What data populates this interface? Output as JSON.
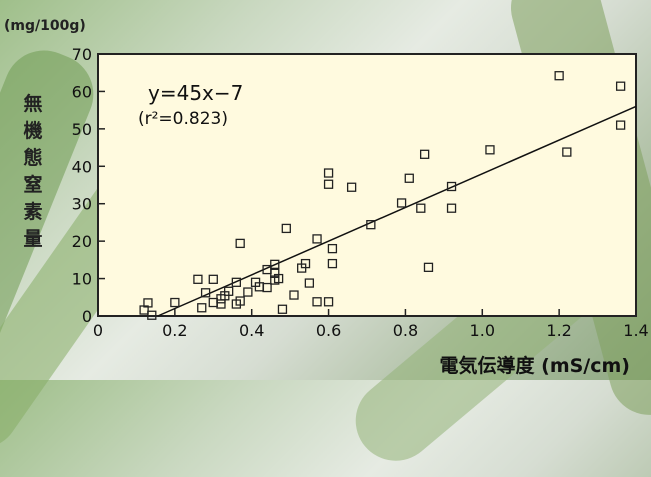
{
  "chart_data": {
    "type": "scatter",
    "unit_label": "(mg/100g)",
    "ylabel_chars": [
      "無",
      "機",
      "態",
      "窒",
      "素",
      "量"
    ],
    "xlabel": "電気伝導度 (mS/cm)",
    "equation": "y=45x−7",
    "r2_label": "(r²=0.823)",
    "xlim": [
      0,
      1.4
    ],
    "ylim": [
      0,
      70
    ],
    "x_ticks": [
      "0",
      "0.2",
      "0.4",
      "0.6",
      "0.8",
      "1.0",
      "1.2",
      "1.4"
    ],
    "y_ticks": [
      "0",
      "10",
      "20",
      "30",
      "40",
      "50",
      "60",
      "70"
    ],
    "trendline": {
      "slope": 45,
      "intercept": -7
    },
    "marker_color": "#222222",
    "plot_background": "#fffadf",
    "points": [
      [
        0.13,
        3.5
      ],
      [
        0.14,
        0.2
      ],
      [
        0.12,
        1.6
      ],
      [
        0.2,
        3.6
      ],
      [
        0.26,
        9.8
      ],
      [
        0.27,
        2.2
      ],
      [
        0.28,
        6.2
      ],
      [
        0.3,
        9.8
      ],
      [
        0.3,
        3.6
      ],
      [
        0.32,
        4.6
      ],
      [
        0.32,
        3.2
      ],
      [
        0.33,
        5.4
      ],
      [
        0.34,
        6.6
      ],
      [
        0.36,
        3.2
      ],
      [
        0.37,
        4.0
      ],
      [
        0.36,
        9.0
      ],
      [
        0.37,
        19.4
      ],
      [
        0.39,
        6.4
      ],
      [
        0.41,
        9.0
      ],
      [
        0.42,
        7.8
      ],
      [
        0.44,
        12.4
      ],
      [
        0.44,
        7.6
      ],
      [
        0.46,
        13.8
      ],
      [
        0.46,
        11.4
      ],
      [
        0.46,
        9.6
      ],
      [
        0.47,
        10.0
      ],
      [
        0.48,
        1.8
      ],
      [
        0.49,
        23.4
      ],
      [
        0.51,
        5.6
      ],
      [
        0.53,
        12.8
      ],
      [
        0.54,
        14.0
      ],
      [
        0.55,
        8.8
      ],
      [
        0.57,
        3.8
      ],
      [
        0.57,
        20.6
      ],
      [
        0.6,
        3.8
      ],
      [
        0.6,
        35.2
      ],
      [
        0.6,
        38.2
      ],
      [
        0.61,
        14.0
      ],
      [
        0.61,
        18.0
      ],
      [
        0.66,
        34.4
      ],
      [
        0.71,
        24.4
      ],
      [
        0.79,
        30.2
      ],
      [
        0.81,
        36.8
      ],
      [
        0.84,
        28.8
      ],
      [
        0.85,
        43.2
      ],
      [
        0.86,
        13.0
      ],
      [
        0.92,
        34.6
      ],
      [
        0.92,
        28.8
      ],
      [
        1.02,
        44.4
      ],
      [
        1.2,
        64.2
      ],
      [
        1.22,
        43.8
      ],
      [
        1.36,
        61.4
      ],
      [
        1.36,
        51.0
      ]
    ]
  }
}
